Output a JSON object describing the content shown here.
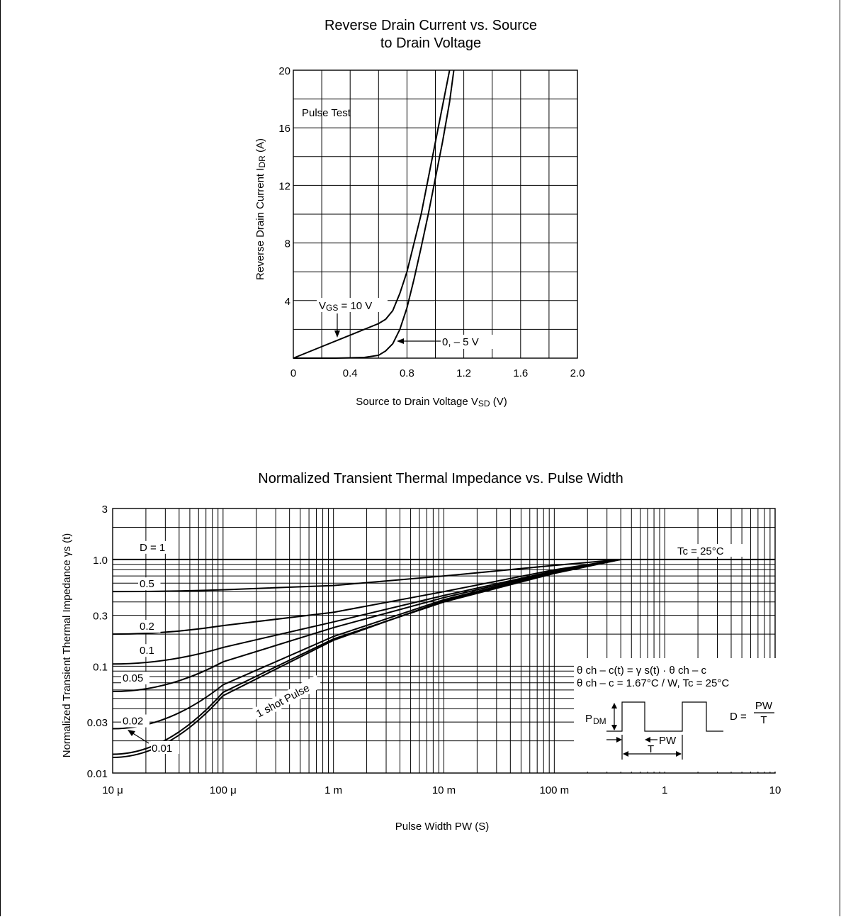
{
  "chart_data": [
    {
      "type": "line",
      "title": "Reverse Drain Current vs. Source\nto Drain Voltage",
      "xlabel": "Source to Drain Voltage V_SD (V)",
      "ylabel": "Reverse Drain Current I_DR (A)",
      "xlim": [
        0,
        2.0
      ],
      "ylim": [
        0,
        20
      ],
      "x_ticks": [
        "0",
        "0.4",
        "0.8",
        "1.2",
        "1.6",
        "2.0"
      ],
      "y_ticks": [
        "4",
        "8",
        "12",
        "16",
        "20"
      ],
      "grid": true,
      "series": [
        {
          "name": "V_GS = 10 V",
          "x": [
            0,
            0.2,
            0.4,
            0.6,
            0.65,
            0.7,
            0.75,
            0.8,
            0.85,
            0.9,
            0.95,
            1.0,
            1.05,
            1.1
          ],
          "y": [
            0,
            0.8,
            1.6,
            2.4,
            2.7,
            3.3,
            4.5,
            6.0,
            8.0,
            10.0,
            12.5,
            15.0,
            17.5,
            20
          ]
        },
        {
          "name": "0, – 5 V",
          "x": [
            0,
            0.3,
            0.5,
            0.6,
            0.65,
            0.7,
            0.75,
            0.8,
            0.85,
            0.9,
            0.95,
            1.0,
            1.05,
            1.1,
            1.13
          ],
          "y": [
            0,
            0.0,
            0.05,
            0.2,
            0.5,
            1.0,
            2.0,
            3.5,
            5.5,
            7.7,
            10.0,
            12.5,
            15.0,
            17.8,
            20
          ]
        }
      ],
      "annotations": {
        "pulse_test": "Pulse Test",
        "vgs_prefix": "V",
        "vgs_sub": "GS",
        "vgs_suffix": " = 10 V",
        "series2_label": "0, – 5 V"
      },
      "axis_text": {
        "x_main": "Source to Drain Voltage V",
        "x_sub": "SD",
        "x_unit": " (V)",
        "y_main": "Reverse Drain Current I",
        "y_sub": "DR",
        "y_unit": " (A)"
      }
    },
    {
      "type": "line",
      "title": "Normalized Transient Thermal Impedance vs. Pulse Width",
      "xlabel": "Pulse Width PW (S)",
      "ylabel": "Normalized Transient Thermal Impedance γs (t)",
      "xscale": "log",
      "yscale": "log",
      "xlim": [
        1e-05,
        10
      ],
      "ylim": [
        0.01,
        3
      ],
      "x_ticks": [
        "10 μ",
        "100 μ",
        "1 m",
        "10 m",
        "100 m",
        "1",
        "10"
      ],
      "y_ticks": [
        "0.01",
        "0.03",
        "0.1",
        "0.3",
        "1.0",
        "3"
      ],
      "grid": true,
      "series": [
        {
          "name": "D = 1",
          "x": [
            1e-05,
            10
          ],
          "y": [
            1.0,
            1.0
          ]
        },
        {
          "name": "0.5",
          "x": [
            1e-05,
            0.0001,
            0.001,
            0.01,
            0.1,
            0.4
          ],
          "y": [
            0.5,
            0.52,
            0.57,
            0.7,
            0.88,
            1.0
          ]
        },
        {
          "name": "0.2",
          "x": [
            1e-05,
            0.0001,
            0.001,
            0.01,
            0.1,
            0.4
          ],
          "y": [
            0.2,
            0.24,
            0.32,
            0.5,
            0.8,
            1.0
          ]
        },
        {
          "name": "0.1",
          "x": [
            1e-05,
            0.0001,
            0.001,
            0.01,
            0.1,
            0.4
          ],
          "y": [
            0.105,
            0.15,
            0.26,
            0.46,
            0.78,
            1.0
          ]
        },
        {
          "name": "0.05",
          "x": [
            1e-05,
            0.0001,
            0.001,
            0.01,
            0.1,
            0.4
          ],
          "y": [
            0.058,
            0.11,
            0.23,
            0.44,
            0.77,
            1.0
          ]
        },
        {
          "name": "0.02",
          "x": [
            1e-05,
            0.0001,
            0.001,
            0.01,
            0.1,
            0.4
          ],
          "y": [
            0.026,
            0.067,
            0.19,
            0.42,
            0.76,
            1.0
          ]
        },
        {
          "name": "0.01",
          "x": [
            1e-05,
            0.0001,
            0.001,
            0.01,
            0.1,
            0.4
          ],
          "y": [
            0.014,
            0.053,
            0.175,
            0.41,
            0.75,
            1.0
          ]
        },
        {
          "name": "1 shot Pulse",
          "x": [
            1e-05,
            0.0001,
            0.001,
            0.01,
            0.1,
            0.4
          ],
          "y": [
            0.015,
            0.057,
            0.18,
            0.4,
            0.74,
            1.0
          ]
        }
      ],
      "annotations": {
        "tc": "Tc = 25°C",
        "formula1": "θ ch – c(t) = γ s(t) · θ ch – c",
        "formula2": "θ ch – c = 1.67°C / W, Tc = 25°C",
        "pdm_p": "P",
        "pdm_sub": "DM",
        "pw": "PW",
        "t": "T",
        "d_eq": "D =",
        "frac_num": "PW",
        "frac_den": "T"
      }
    }
  ]
}
